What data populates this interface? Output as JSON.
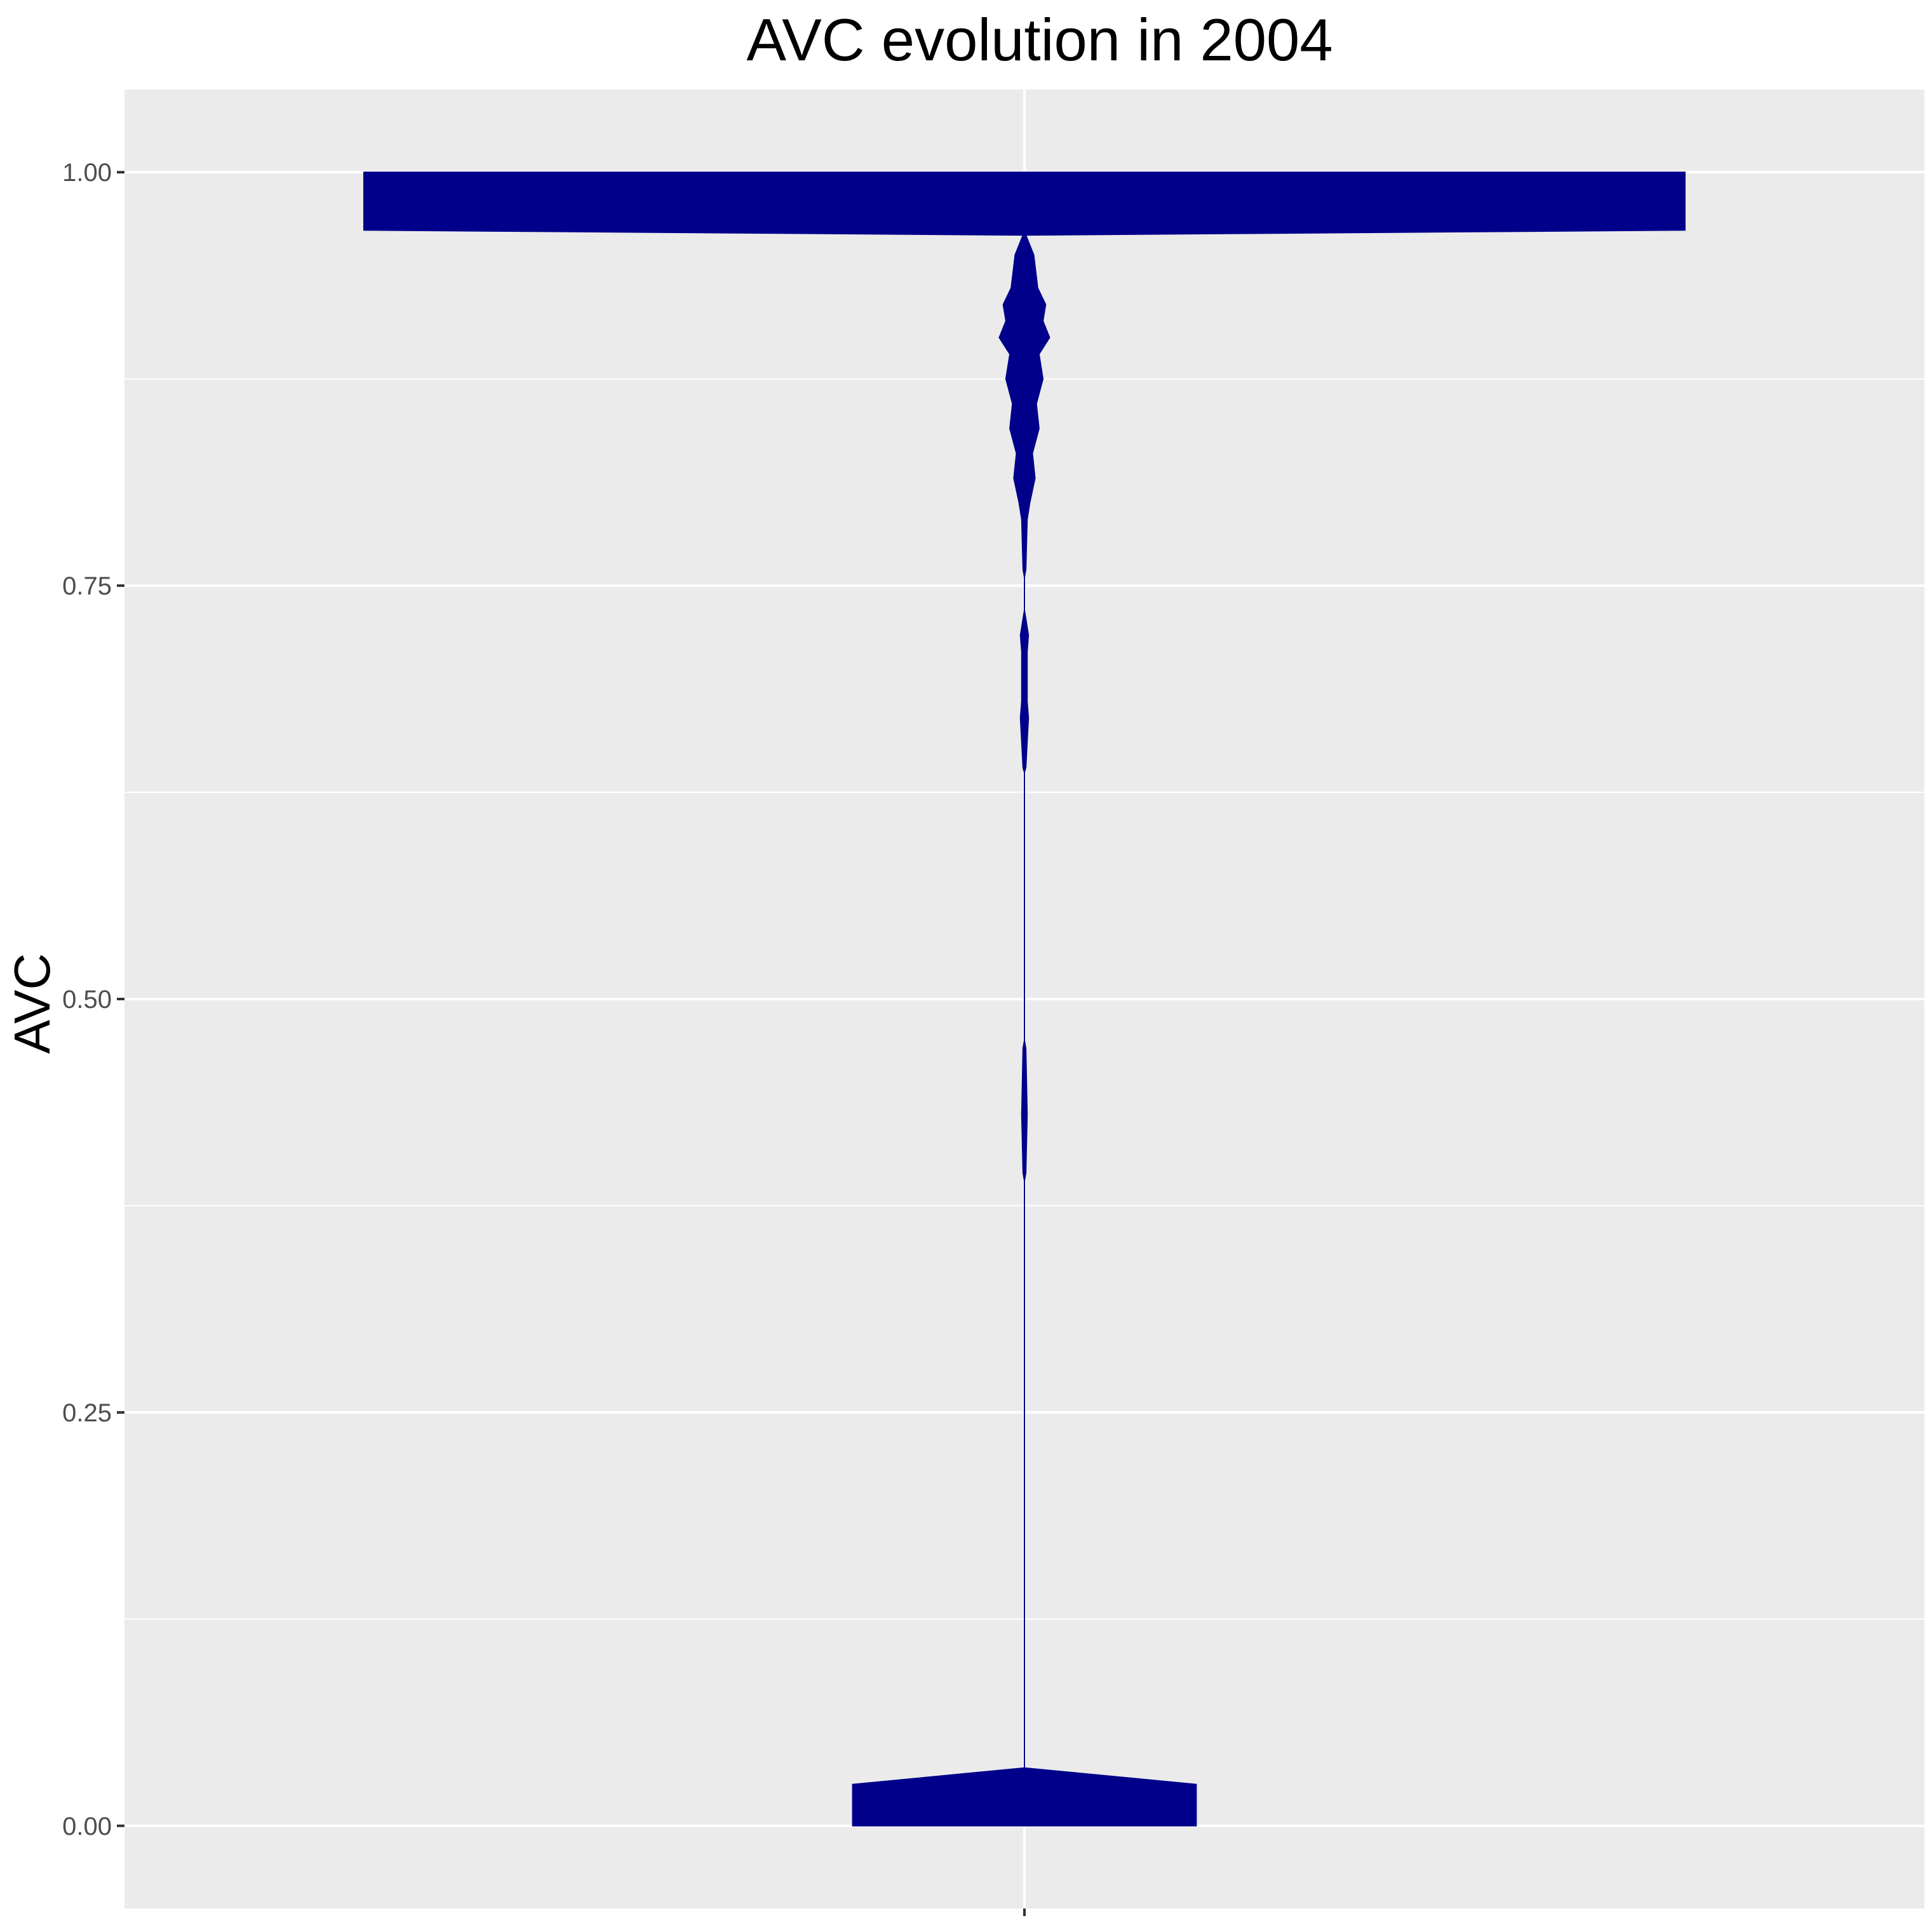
{
  "chart_data": {
    "type": "violin",
    "title": "AVC evolution in 2004",
    "xlabel": "",
    "ylabel": "AVC",
    "ylim": [
      -0.05,
      1.05
    ],
    "yticks": [
      0.0,
      0.25,
      0.5,
      0.75,
      1.0
    ],
    "ytick_labels": [
      "0.00",
      "0.25",
      "0.50",
      "0.75",
      "1.00"
    ],
    "grid": true,
    "legend": "none",
    "colors": {
      "fill": "#00008B",
      "panel": "#EBEBEB",
      "grid": "#FFFFFF",
      "tick_text": "#4D4D4D"
    },
    "series": [
      {
        "half_width_max": 1.0,
        "profile": [
          [
            0.0,
            0.26
          ],
          [
            0.025,
            0.26
          ],
          [
            0.035,
            0.0
          ],
          [
            0.39,
            0.0
          ],
          [
            0.395,
            0.002
          ],
          [
            0.43,
            0.004
          ],
          [
            0.47,
            0.002
          ],
          [
            0.475,
            0.0
          ],
          [
            0.637,
            0.0
          ],
          [
            0.64,
            0.002
          ],
          [
            0.67,
            0.006
          ],
          [
            0.68,
            0.004
          ],
          [
            0.71,
            0.004
          ],
          [
            0.72,
            0.006
          ],
          [
            0.73,
            0.002
          ],
          [
            0.735,
            0.0
          ],
          [
            0.755,
            0.0
          ],
          [
            0.76,
            0.002
          ],
          [
            0.79,
            0.004
          ],
          [
            0.8,
            0.008
          ],
          [
            0.815,
            0.016
          ],
          [
            0.83,
            0.012
          ],
          [
            0.845,
            0.022
          ],
          [
            0.86,
            0.018
          ],
          [
            0.875,
            0.028
          ],
          [
            0.89,
            0.022
          ],
          [
            0.9,
            0.038
          ],
          [
            0.91,
            0.028
          ],
          [
            0.92,
            0.032
          ],
          [
            0.93,
            0.02
          ],
          [
            0.95,
            0.014
          ],
          [
            0.962,
            0.002
          ],
          [
            0.965,
            1.0
          ],
          [
            0.975,
            1.0
          ],
          [
            1.0,
            1.0
          ]
        ]
      }
    ]
  }
}
